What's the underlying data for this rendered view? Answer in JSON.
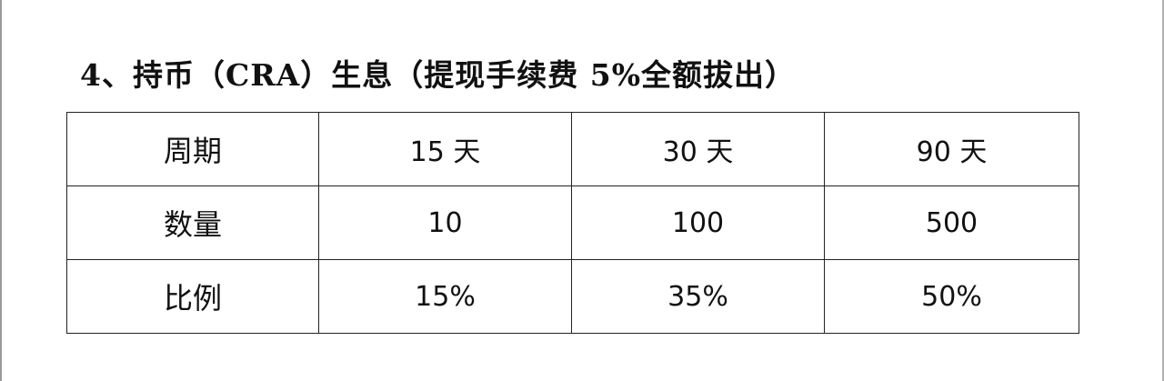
{
  "heading": "4、持币（CRA）生息（提现手续费 5%全额拔出）",
  "table": {
    "rows": [
      {
        "label": "周期",
        "cells": [
          "15 天",
          "30 天",
          "90 天"
        ]
      },
      {
        "label": "数量",
        "cells": [
          "10",
          "100",
          "500"
        ]
      },
      {
        "label": "比例",
        "cells": [
          "15%",
          "35%",
          "50%"
        ]
      }
    ]
  }
}
